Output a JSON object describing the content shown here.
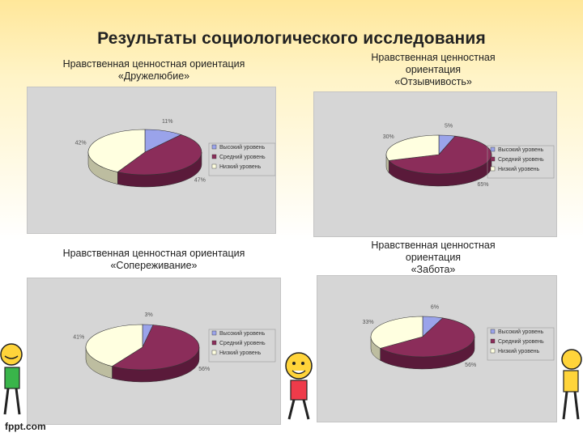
{
  "page_title": "Результаты социологического исследования",
  "footer": "fppt.com",
  "colors": {
    "high": "#9aa3ea",
    "medium": "#8b2d5a",
    "low": "#ffffe0",
    "panel": "#d6d6d6"
  },
  "chart_data": [
    {
      "type": "pie",
      "title": "Нравственная ценностная ориентация\n«Дружелюбие»",
      "categories": [
        "Высокий уровень",
        "Средний уровень",
        "Низкий уровень"
      ],
      "values": [
        11,
        47,
        42
      ],
      "labels": [
        "11%",
        "47%",
        "42%"
      ]
    },
    {
      "type": "pie",
      "title": "Нравственная ценностная\nориентация\n«Отзывчивость»",
      "categories": [
        "Высокий уровень",
        "Средний уровень",
        "Низкий уровень"
      ],
      "values": [
        5,
        65,
        30
      ],
      "labels": [
        "5%",
        "65%",
        "30%"
      ]
    },
    {
      "type": "pie",
      "title": "Нравственная ценностная ориентация\n«Сопереживание»",
      "categories": [
        "Высокий уровень",
        "Средний уровень",
        "Низкий уровень"
      ],
      "values": [
        3,
        56,
        41
      ],
      "labels": [
        "3%",
        "56%",
        "41%"
      ]
    },
    {
      "type": "pie",
      "title": "Нравственная ценностная\nориентация\n«Забота»",
      "categories": [
        "Высокий уровень",
        "Средний уровень",
        "Низкий уровень"
      ],
      "values": [
        6,
        56,
        33
      ],
      "labels": [
        "6%",
        "56%",
        "33%"
      ]
    }
  ]
}
